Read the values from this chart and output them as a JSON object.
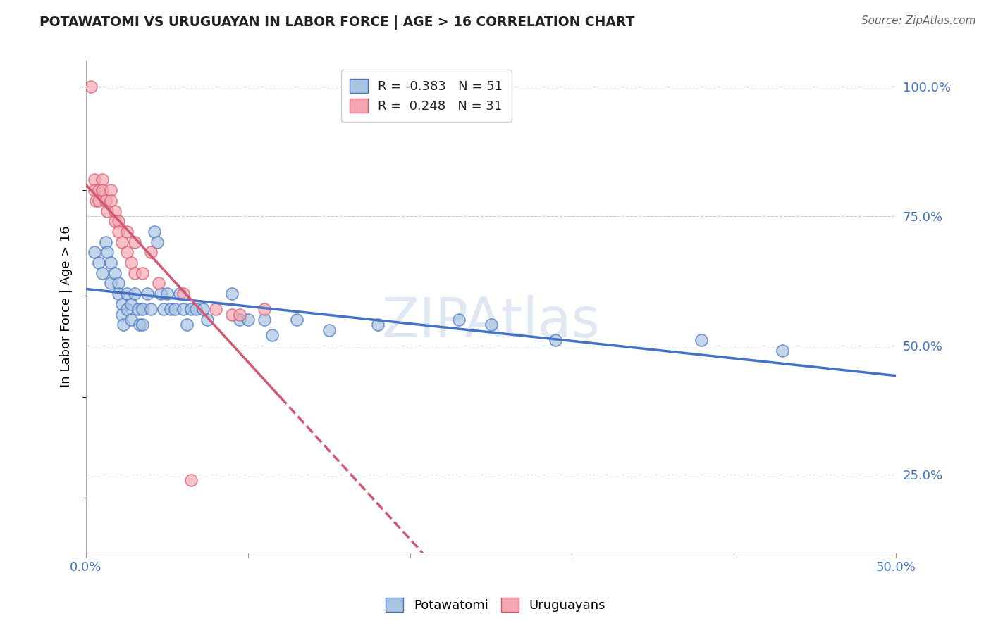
{
  "title": "POTAWATOMI VS URUGUAYAN IN LABOR FORCE | AGE > 16 CORRELATION CHART",
  "source_text": "Source: ZipAtlas.com",
  "ylabel": "In Labor Force | Age > 16",
  "xlim": [
    0.0,
    0.5
  ],
  "ylim": [
    0.1,
    1.05
  ],
  "xticks": [
    0.0,
    0.1,
    0.2,
    0.3,
    0.4,
    0.5
  ],
  "xtick_labels": [
    "0.0%",
    "",
    "",
    "",
    "",
    "50.0%"
  ],
  "ytick_labels_right": [
    "25.0%",
    "50.0%",
    "75.0%",
    "100.0%"
  ],
  "ytick_vals_right": [
    0.25,
    0.5,
    0.75,
    1.0
  ],
  "blue_label": "Potawatomi",
  "pink_label": "Uruguayans",
  "blue_R": "-0.383",
  "blue_N": "51",
  "pink_R": "0.248",
  "pink_N": "31",
  "blue_color": "#a8c4e0",
  "pink_color": "#f4a7b0",
  "blue_line_color": "#4472c4",
  "pink_line_color": "#d45870",
  "blue_scatter": [
    [
      0.005,
      0.68
    ],
    [
      0.008,
      0.66
    ],
    [
      0.01,
      0.64
    ],
    [
      0.012,
      0.7
    ],
    [
      0.013,
      0.68
    ],
    [
      0.015,
      0.66
    ],
    [
      0.015,
      0.62
    ],
    [
      0.018,
      0.64
    ],
    [
      0.02,
      0.62
    ],
    [
      0.02,
      0.6
    ],
    [
      0.022,
      0.58
    ],
    [
      0.022,
      0.56
    ],
    [
      0.023,
      0.54
    ],
    [
      0.025,
      0.6
    ],
    [
      0.025,
      0.57
    ],
    [
      0.028,
      0.58
    ],
    [
      0.028,
      0.55
    ],
    [
      0.03,
      0.6
    ],
    [
      0.032,
      0.57
    ],
    [
      0.033,
      0.54
    ],
    [
      0.035,
      0.57
    ],
    [
      0.035,
      0.54
    ],
    [
      0.038,
      0.6
    ],
    [
      0.04,
      0.57
    ],
    [
      0.042,
      0.72
    ],
    [
      0.044,
      0.7
    ],
    [
      0.046,
      0.6
    ],
    [
      0.048,
      0.57
    ],
    [
      0.05,
      0.6
    ],
    [
      0.052,
      0.57
    ],
    [
      0.055,
      0.57
    ],
    [
      0.058,
      0.6
    ],
    [
      0.06,
      0.57
    ],
    [
      0.062,
      0.54
    ],
    [
      0.065,
      0.57
    ],
    [
      0.068,
      0.57
    ],
    [
      0.072,
      0.57
    ],
    [
      0.075,
      0.55
    ],
    [
      0.09,
      0.6
    ],
    [
      0.095,
      0.55
    ],
    [
      0.1,
      0.55
    ],
    [
      0.11,
      0.55
    ],
    [
      0.115,
      0.52
    ],
    [
      0.13,
      0.55
    ],
    [
      0.15,
      0.53
    ],
    [
      0.18,
      0.54
    ],
    [
      0.23,
      0.55
    ],
    [
      0.25,
      0.54
    ],
    [
      0.29,
      0.51
    ],
    [
      0.38,
      0.51
    ],
    [
      0.43,
      0.49
    ]
  ],
  "pink_scatter": [
    [
      0.003,
      1.0
    ],
    [
      0.005,
      0.82
    ],
    [
      0.005,
      0.8
    ],
    [
      0.006,
      0.78
    ],
    [
      0.008,
      0.8
    ],
    [
      0.008,
      0.78
    ],
    [
      0.01,
      0.82
    ],
    [
      0.01,
      0.8
    ],
    [
      0.012,
      0.78
    ],
    [
      0.013,
      0.76
    ],
    [
      0.015,
      0.8
    ],
    [
      0.015,
      0.78
    ],
    [
      0.018,
      0.76
    ],
    [
      0.018,
      0.74
    ],
    [
      0.02,
      0.74
    ],
    [
      0.02,
      0.72
    ],
    [
      0.022,
      0.7
    ],
    [
      0.025,
      0.68
    ],
    [
      0.025,
      0.72
    ],
    [
      0.028,
      0.66
    ],
    [
      0.03,
      0.7
    ],
    [
      0.03,
      0.64
    ],
    [
      0.035,
      0.64
    ],
    [
      0.04,
      0.68
    ],
    [
      0.045,
      0.62
    ],
    [
      0.06,
      0.6
    ],
    [
      0.08,
      0.57
    ],
    [
      0.09,
      0.56
    ],
    [
      0.095,
      0.56
    ],
    [
      0.065,
      0.24
    ],
    [
      0.11,
      0.57
    ]
  ]
}
